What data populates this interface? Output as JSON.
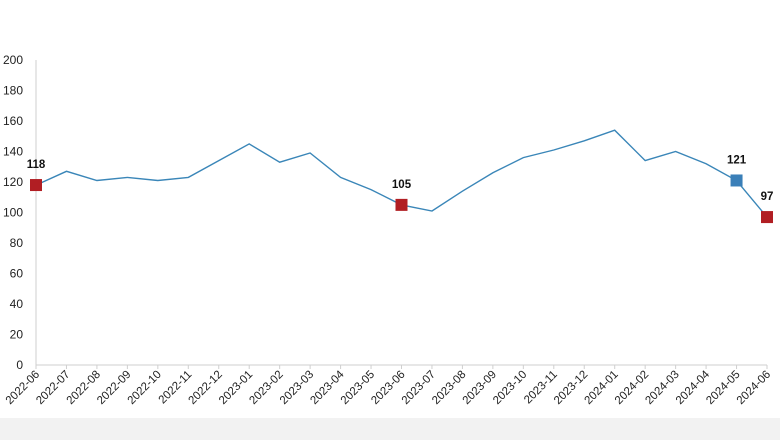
{
  "chart_data": {
    "type": "line",
    "title": "",
    "xlabel": "",
    "ylabel": "",
    "ylim": [
      0,
      200
    ],
    "yticks": [
      0,
      20,
      40,
      60,
      80,
      100,
      120,
      140,
      160,
      180,
      200
    ],
    "grid": false,
    "legend": "none",
    "categories": [
      "2022-06",
      "2022-07",
      "2022-08",
      "2022-09",
      "2022-10",
      "2022-11",
      "2022-12",
      "2023-01",
      "2023-02",
      "2023-03",
      "2023-04",
      "2023-05",
      "2023-06",
      "2023-07",
      "2023-08",
      "2023-09",
      "2023-10",
      "2023-11",
      "2023-12",
      "2024-01",
      "2024-02",
      "2024-03",
      "2024-04",
      "2024-05",
      "2024-06"
    ],
    "series": [
      {
        "values": [
          118,
          127,
          121,
          123,
          121,
          123,
          134,
          145,
          133,
          139,
          123,
          115,
          105,
          101,
          114,
          126,
          136,
          141,
          147,
          154,
          134,
          140,
          132,
          121,
          97
        ],
        "color": "#3a86b8"
      }
    ],
    "markers": [
      {
        "category": "2022-06",
        "value": 118,
        "label": "118",
        "color": "#b11e23"
      },
      {
        "category": "2023-06",
        "value": 105,
        "label": "105",
        "color": "#b11e23"
      },
      {
        "category": "2024-05",
        "value": 121,
        "label": "121",
        "color": "#3a7fb8"
      },
      {
        "category": "2024-06",
        "value": 97,
        "label": "97",
        "color": "#b11e23"
      }
    ],
    "axis_color": "#cfcfcf"
  }
}
